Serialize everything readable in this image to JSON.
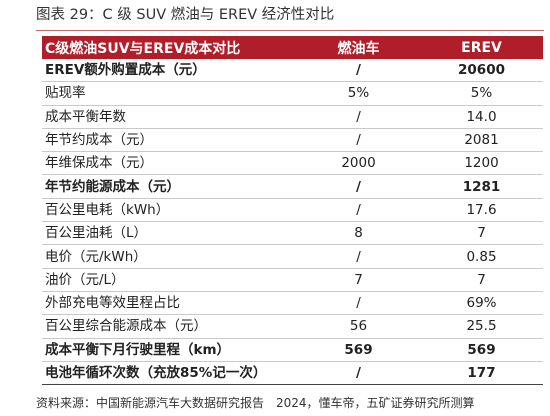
{
  "figure": {
    "title": "图表 29：C 级 SUV 燃油与 EREV 经济性对比"
  },
  "table": {
    "headers": [
      "C级燃油SUV与EREV成本对比",
      "燃油车",
      "EREV"
    ],
    "rows": [
      {
        "label": "EREV额外购置成本（元）",
        "fuel": "/",
        "erev": "20600",
        "bold": true
      },
      {
        "label": "贴现率",
        "fuel": "5%",
        "erev": "5%",
        "bold": false
      },
      {
        "label": "成本平衡年数",
        "fuel": "/",
        "erev": "14.0",
        "bold": false
      },
      {
        "label": "年节约成本（元）",
        "fuel": "/",
        "erev": "2081",
        "bold": false
      },
      {
        "label": "年维保成本（元）",
        "fuel": "2000",
        "erev": "1200",
        "bold": false
      },
      {
        "label": "年节约能源成本（元）",
        "fuel": "/",
        "erev": "1281",
        "bold": true
      },
      {
        "label": "百公里电耗（kWh）",
        "fuel": "/",
        "erev": "17.6",
        "bold": false
      },
      {
        "label": "百公里油耗（L）",
        "fuel": "8",
        "erev": "7",
        "bold": false
      },
      {
        "label": "电价（元/kWh）",
        "fuel": "/",
        "erev": "0.85",
        "bold": false
      },
      {
        "label": "油价（元/L）",
        "fuel": "7",
        "erev": "7",
        "bold": false
      },
      {
        "label": "外部充电等效里程占比",
        "fuel": "/",
        "erev": "69%",
        "bold": false
      },
      {
        "label": "百公里综合能源成本（元）",
        "fuel": "56",
        "erev": "25.5",
        "bold": false
      },
      {
        "label": "成本平衡下月行驶里程（km）",
        "fuel": "569",
        "erev": "569",
        "bold": true
      },
      {
        "label": "电池年循环次数（充放85%记一次）",
        "fuel": "/",
        "erev": "177",
        "bold": true
      }
    ]
  },
  "source": {
    "text": "资料来源：中国新能源汽车大数据研究报告",
    "note": "2024，懂车帝，五矿证券研究所测算"
  }
}
